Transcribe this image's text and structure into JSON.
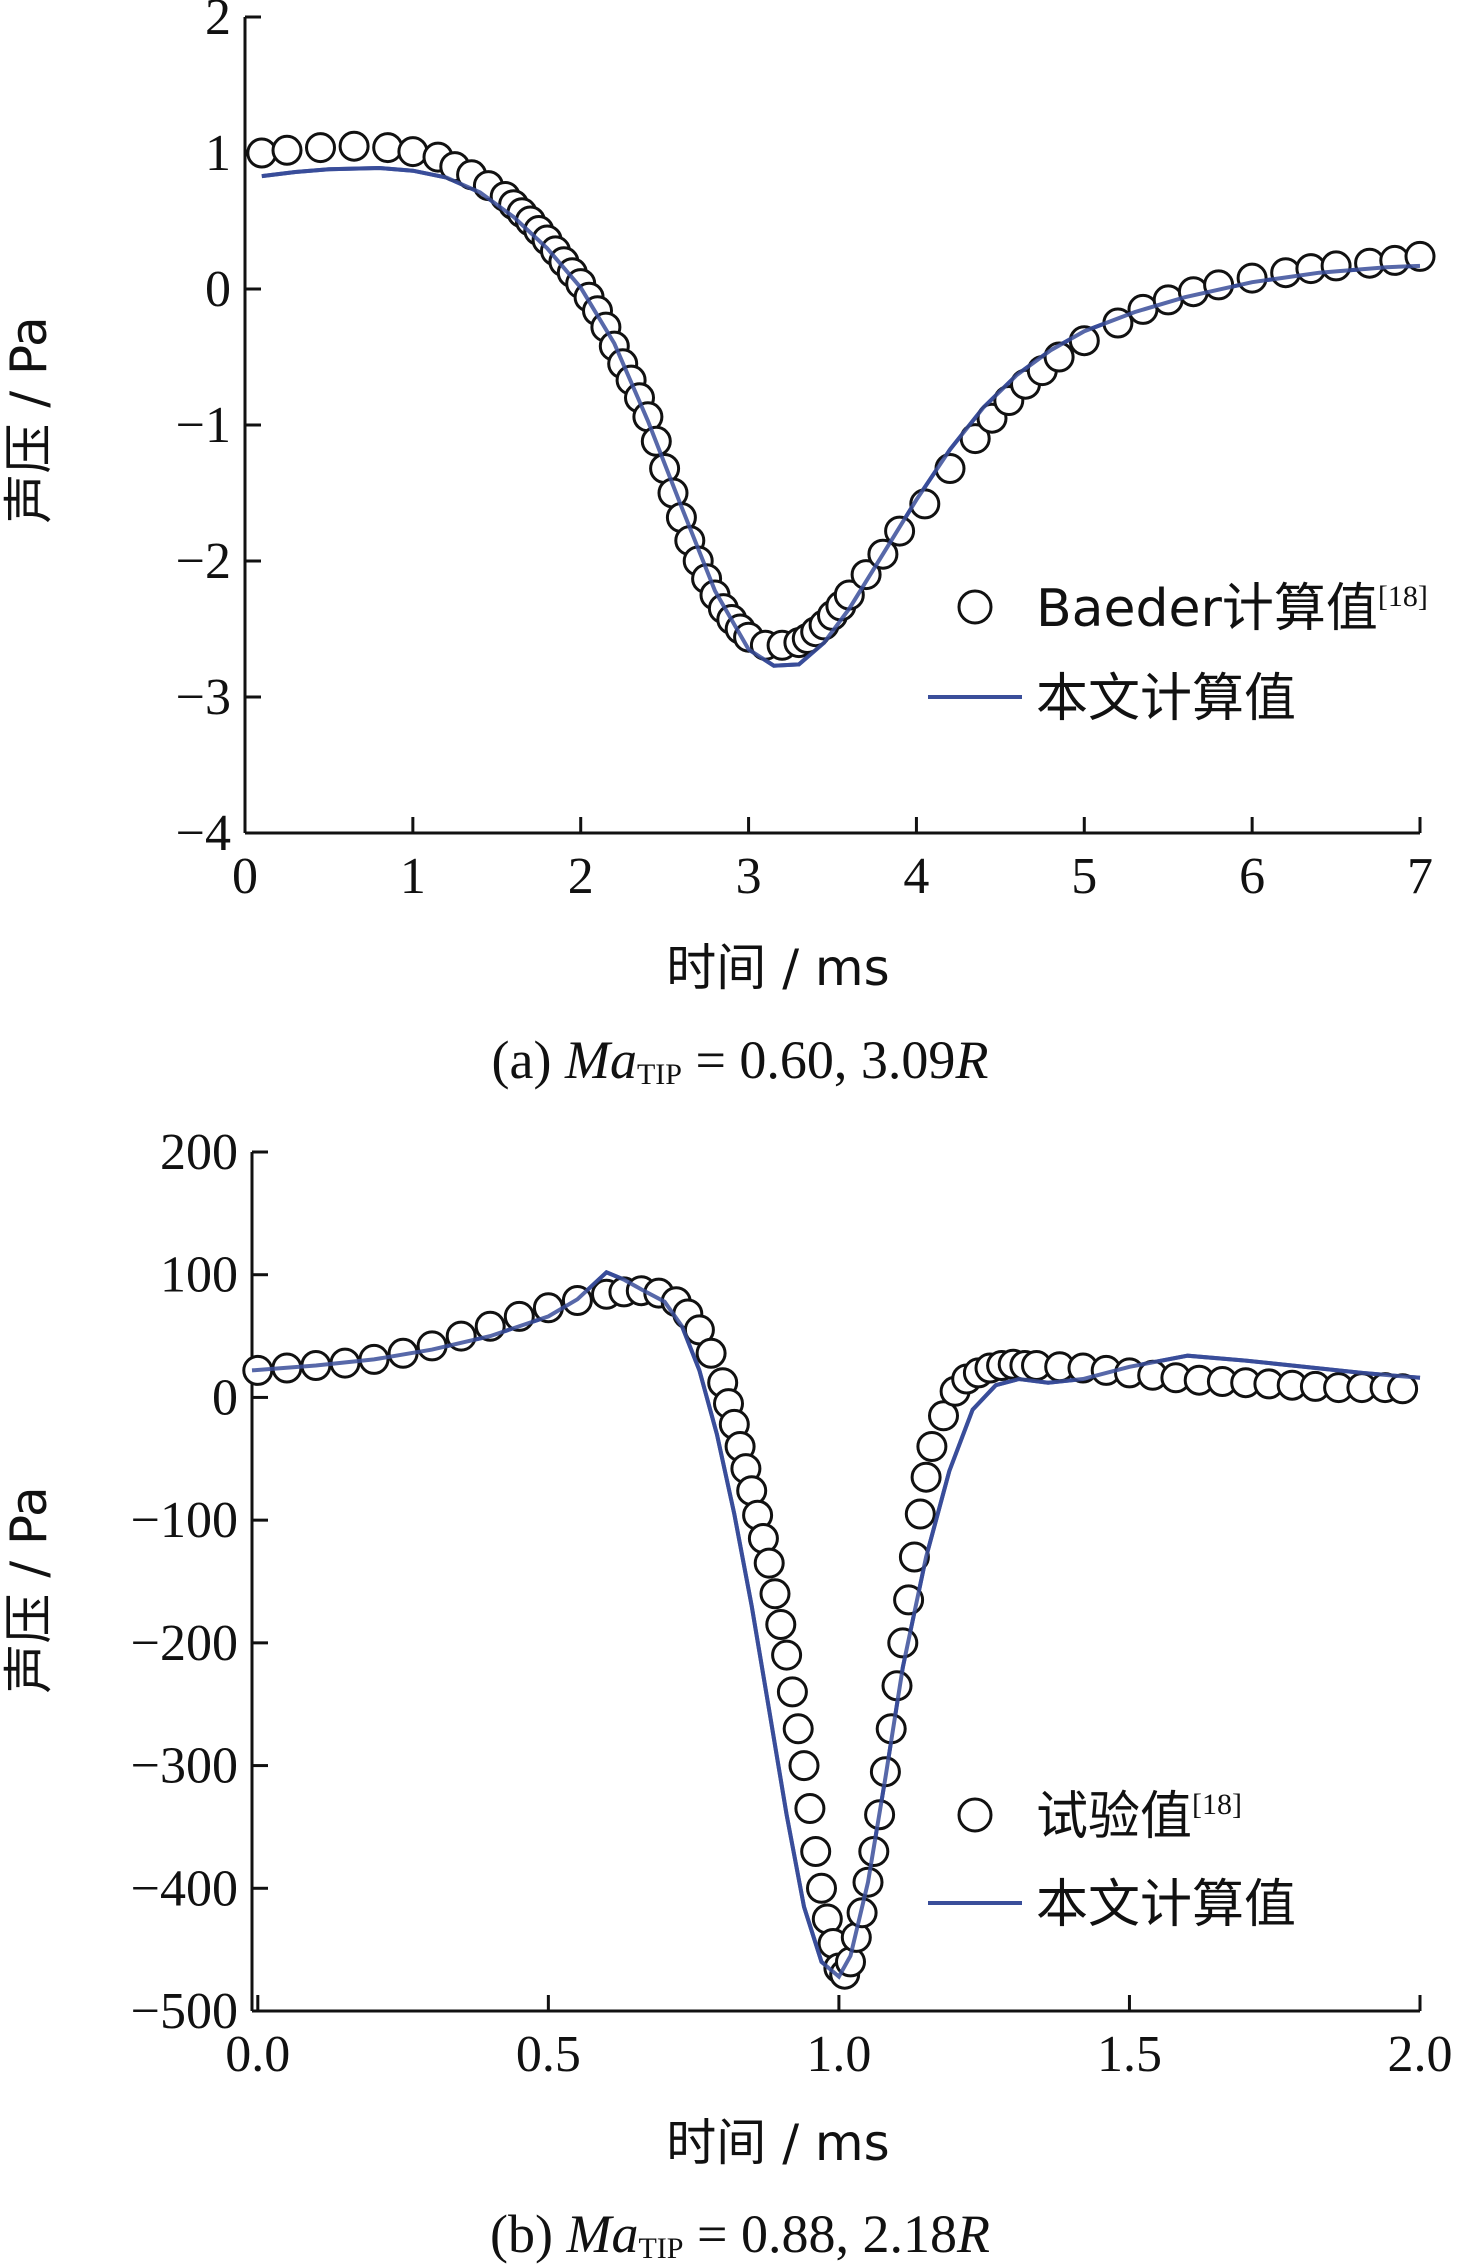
{
  "chart_data": [
    {
      "type": "line",
      "caption": {
        "prefix": "(a)  ",
        "var": "Ma",
        "sub": "TIP",
        "rest": " = 0.60, 3.09",
        "var2": "R"
      },
      "xlabel": "时间 / ms",
      "ylabel": "声压 / Pa",
      "xlim": [
        0,
        7
      ],
      "ylim": [
        -4,
        2
      ],
      "xticks": [
        "0",
        "1",
        "2",
        "3",
        "4",
        "5",
        "6",
        "7"
      ],
      "yticks": [
        "−4",
        "−3",
        "−2",
        "−1",
        "0",
        "1",
        "2"
      ],
      "xtick_values": [
        0,
        1,
        2,
        3,
        4,
        5,
        6,
        7
      ],
      "ytick_values": [
        -4,
        -3,
        -2,
        -1,
        0,
        1,
        2
      ],
      "legend_position": "center-right",
      "series": [
        {
          "name": "Baeder计算值",
          "ref": "[18]",
          "style": "circles",
          "x": [
            0.1,
            0.25,
            0.45,
            0.65,
            0.85,
            1.0,
            1.15,
            1.25,
            1.35,
            1.45,
            1.55,
            1.6,
            1.65,
            1.7,
            1.75,
            1.8,
            1.85,
            1.9,
            1.95,
            2.0,
            2.05,
            2.1,
            2.15,
            2.2,
            2.25,
            2.3,
            2.35,
            2.4,
            2.45,
            2.5,
            2.55,
            2.6,
            2.65,
            2.7,
            2.75,
            2.8,
            2.85,
            2.9,
            2.95,
            3.0,
            3.1,
            3.2,
            3.3,
            3.35,
            3.4,
            3.45,
            3.5,
            3.55,
            3.6,
            3.7,
            3.8,
            3.9,
            4.05,
            4.2,
            4.35,
            4.45,
            4.55,
            4.65,
            4.75,
            4.85,
            5.0,
            5.2,
            5.35,
            5.5,
            5.65,
            5.8,
            6.0,
            6.2,
            6.35,
            6.5,
            6.7,
            6.85,
            7.0
          ],
          "y": [
            1.0,
            1.02,
            1.04,
            1.05,
            1.04,
            1.01,
            0.97,
            0.9,
            0.84,
            0.76,
            0.68,
            0.62,
            0.56,
            0.5,
            0.43,
            0.36,
            0.28,
            0.2,
            0.12,
            0.04,
            -0.06,
            -0.16,
            -0.28,
            -0.42,
            -0.55,
            -0.67,
            -0.8,
            -0.94,
            -1.12,
            -1.32,
            -1.5,
            -1.68,
            -1.85,
            -2.0,
            -2.13,
            -2.25,
            -2.35,
            -2.43,
            -2.5,
            -2.56,
            -2.62,
            -2.62,
            -2.6,
            -2.57,
            -2.52,
            -2.47,
            -2.4,
            -2.33,
            -2.25,
            -2.1,
            -1.95,
            -1.78,
            -1.58,
            -1.32,
            -1.1,
            -0.95,
            -0.82,
            -0.7,
            -0.6,
            -0.5,
            -0.38,
            -0.25,
            -0.15,
            -0.08,
            -0.02,
            0.03,
            0.08,
            0.12,
            0.15,
            0.17,
            0.19,
            0.21,
            0.24
          ]
        },
        {
          "name": "本文计算值",
          "style": "line",
          "x": [
            0.1,
            0.3,
            0.5,
            0.8,
            1.0,
            1.2,
            1.4,
            1.6,
            1.8,
            2.0,
            2.2,
            2.4,
            2.6,
            2.8,
            3.0,
            3.15,
            3.3,
            3.45,
            3.6,
            3.8,
            4.0,
            4.2,
            4.4,
            4.6,
            4.8,
            5.0,
            5.3,
            5.6,
            6.0,
            6.4,
            6.8,
            7.0
          ],
          "y": [
            0.83,
            0.86,
            0.88,
            0.89,
            0.87,
            0.82,
            0.71,
            0.53,
            0.3,
            0.01,
            -0.4,
            -0.97,
            -1.6,
            -2.22,
            -2.65,
            -2.77,
            -2.76,
            -2.6,
            -2.35,
            -1.95,
            -1.55,
            -1.18,
            -0.87,
            -0.63,
            -0.45,
            -0.31,
            -0.17,
            -0.06,
            0.05,
            0.12,
            0.16,
            0.17
          ]
        }
      ]
    },
    {
      "type": "line",
      "caption": {
        "prefix": "(b)  ",
        "var": "Ma",
        "sub": "TIP",
        "rest": " = 0.88, 2.18",
        "var2": "R"
      },
      "xlabel": "时间 / ms",
      "ylabel": "声压 / Pa",
      "xlim": [
        -0.01,
        2.0
      ],
      "ylim": [
        -500,
        200
      ],
      "xticks": [
        "0.0",
        "0.5",
        "1.0",
        "1.5",
        "2.0"
      ],
      "yticks": [
        "−500",
        "−400",
        "−300",
        "−200",
        "−100",
        "0",
        "100",
        "200"
      ],
      "xtick_values": [
        0.0,
        0.5,
        1.0,
        1.5,
        2.0
      ],
      "ytick_values": [
        -500,
        -400,
        -300,
        -200,
        -100,
        0,
        100,
        200
      ],
      "legend_position": "center-right",
      "series": [
        {
          "name": "试验值",
          "ref": "[18]",
          "style": "circles",
          "x": [
            0.0,
            0.05,
            0.1,
            0.15,
            0.2,
            0.25,
            0.3,
            0.35,
            0.4,
            0.45,
            0.5,
            0.55,
            0.6,
            0.63,
            0.66,
            0.69,
            0.72,
            0.74,
            0.76,
            0.78,
            0.8,
            0.81,
            0.82,
            0.83,
            0.84,
            0.85,
            0.86,
            0.87,
            0.88,
            0.89,
            0.9,
            0.91,
            0.92,
            0.93,
            0.94,
            0.95,
            0.96,
            0.97,
            0.98,
            0.99,
            1.0,
            1.01,
            1.02,
            1.03,
            1.04,
            1.05,
            1.06,
            1.07,
            1.08,
            1.09,
            1.1,
            1.11,
            1.12,
            1.13,
            1.14,
            1.15,
            1.16,
            1.18,
            1.2,
            1.22,
            1.24,
            1.26,
            1.28,
            1.3,
            1.32,
            1.34,
            1.38,
            1.42,
            1.46,
            1.5,
            1.54,
            1.58,
            1.62,
            1.66,
            1.7,
            1.74,
            1.78,
            1.82,
            1.86,
            1.9,
            1.94,
            1.97
          ],
          "y": [
            22,
            24,
            26,
            28,
            31,
            36,
            42,
            50,
            58,
            66,
            73,
            79,
            84,
            86,
            87,
            85,
            78,
            68,
            55,
            36,
            12,
            -5,
            -22,
            -40,
            -58,
            -76,
            -96,
            -115,
            -135,
            -160,
            -185,
            -210,
            -240,
            -270,
            -300,
            -335,
            -370,
            -400,
            -425,
            -445,
            -465,
            -470,
            -460,
            -440,
            -420,
            -395,
            -370,
            -340,
            -305,
            -270,
            -235,
            -200,
            -165,
            -130,
            -95,
            -65,
            -40,
            -15,
            5,
            15,
            20,
            24,
            26,
            27,
            26,
            26,
            25,
            24,
            22,
            20,
            18,
            16,
            14,
            13,
            12,
            11,
            10,
            9,
            8,
            8,
            8,
            7
          ]
        },
        {
          "name": "本文计算值",
          "style": "line",
          "x": [
            -0.01,
            0.1,
            0.2,
            0.3,
            0.4,
            0.5,
            0.55,
            0.6,
            0.63,
            0.66,
            0.7,
            0.73,
            0.76,
            0.79,
            0.82,
            0.85,
            0.88,
            0.91,
            0.94,
            0.97,
            1.0,
            1.02,
            1.05,
            1.08,
            1.11,
            1.15,
            1.19,
            1.23,
            1.27,
            1.31,
            1.36,
            1.42,
            1.5,
            1.6,
            1.7,
            1.8,
            1.9,
            2.0
          ],
          "y": [
            22,
            26,
            31,
            39,
            50,
            66,
            80,
            102,
            96,
            88,
            78,
            58,
            22,
            -30,
            -95,
            -170,
            -255,
            -340,
            -415,
            -460,
            -472,
            -455,
            -395,
            -310,
            -220,
            -130,
            -60,
            -10,
            10,
            15,
            12,
            15,
            25,
            34,
            30,
            25,
            20,
            16
          ]
        }
      ]
    }
  ]
}
